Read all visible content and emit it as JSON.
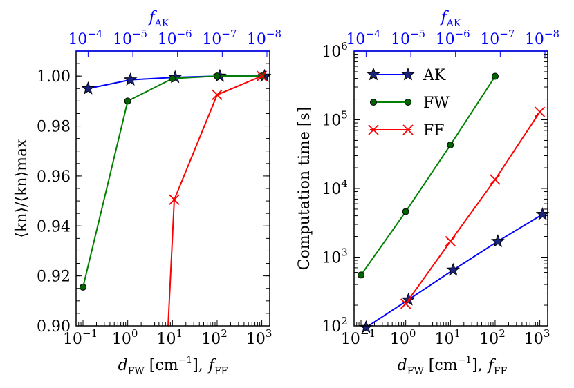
{
  "chart_data": [
    {
      "type": "line",
      "xscale": "log",
      "yscale": "linear",
      "xlim": [
        0.07,
        1500
      ],
      "ylim": [
        0.9,
        1.01
      ],
      "top_axis": {
        "label_base": "f",
        "label_sub": "AK",
        "tick_exponents": [
          "−4",
          "−5",
          "−6",
          "−7",
          "−8"
        ]
      },
      "bottom_axis": {
        "label_d": "d",
        "label_d_sub": "FW",
        "label_unit": " [cm",
        "label_unit_exp": "−1",
        "label_unit_close": "],",
        "label_f": "f",
        "label_f_sub": "FF",
        "tick_exponents": [
          "−1",
          "0",
          "1",
          "2",
          "3"
        ]
      },
      "y_axis": {
        "label": "⟨kn⟩/⟨kn⟩max",
        "tick_labels": [
          "0.90",
          "0.92",
          "0.94",
          "0.96",
          "0.98",
          "1.00"
        ]
      },
      "series": [
        {
          "name": "AK",
          "color": "#0000ff",
          "marker": "star",
          "x": [
            0.13,
            1.15,
            11.5,
            115,
            1150
          ],
          "y": [
            0.995,
            0.9985,
            0.9995,
            1.0,
            1.0
          ]
        },
        {
          "name": "FW",
          "color": "#008000",
          "marker": "circle",
          "x": [
            0.1,
            1,
            10,
            100,
            1000
          ],
          "y": [
            0.9155,
            0.99,
            0.999,
            1.0,
            1.0
          ]
        },
        {
          "name": "FF",
          "color": "#ff0000",
          "marker": "x",
          "x": [
            8,
            11,
            100,
            1000
          ],
          "y": [
            0.9,
            0.9505,
            0.9925,
            1.0
          ]
        }
      ]
    },
    {
      "type": "line",
      "xscale": "log",
      "yscale": "log",
      "xlim": [
        0.07,
        1500
      ],
      "ylim": [
        100,
        1000000
      ],
      "top_axis": {
        "label_base": "f",
        "label_sub": "AK",
        "tick_exponents": [
          "−4",
          "−5",
          "−6",
          "−7",
          "−8"
        ]
      },
      "bottom_axis": {
        "label_d": "d",
        "label_d_sub": "FW",
        "label_unit": " [cm",
        "label_unit_exp": "−1",
        "label_unit_close": "],",
        "label_f": "f",
        "label_f_sub": "FF",
        "tick_exponents": [
          "−1",
          "0",
          "1",
          "2",
          "3"
        ]
      },
      "y_axis": {
        "label": "Computation time [s]",
        "tick_exponents": [
          "2",
          "3",
          "4",
          "5",
          "6"
        ]
      },
      "legend": {
        "position": "top-left",
        "entries": [
          "AK",
          "FW",
          "FF"
        ]
      },
      "series": [
        {
          "name": "AK",
          "color": "#0000ff",
          "marker": "star",
          "x": [
            0.13,
            1.15,
            11.5,
            115,
            1150
          ],
          "y": [
            95,
            240,
            650,
            1700,
            4200
          ]
        },
        {
          "name": "FW",
          "color": "#008000",
          "marker": "circle",
          "x": [
            0.1,
            1,
            10,
            100
          ],
          "y": [
            550,
            4600,
            43000,
            430000
          ]
        },
        {
          "name": "FF",
          "color": "#ff0000",
          "marker": "x",
          "x": [
            1,
            10,
            100,
            1000
          ],
          "y": [
            210,
            1700,
            13500,
            130000
          ]
        }
      ]
    }
  ]
}
